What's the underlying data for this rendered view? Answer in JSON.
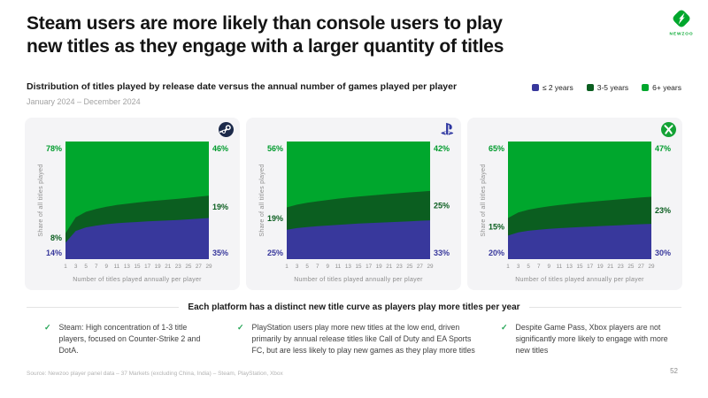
{
  "header": {
    "title_line1": "Steam users are more likely than console users to play",
    "title_line2": "new titles as they engage with a larger quantity of titles",
    "logo_text": "NEWZOO"
  },
  "subtitle": {
    "text": "Distribution of titles played by release date versus the annual number of games played per player",
    "date_range": "January 2024 – December 2024"
  },
  "legend": {
    "items": [
      {
        "label": "≤ 2 years",
        "color": "#38389c"
      },
      {
        "label": "3-5 years",
        "color": "#0b5e20"
      },
      {
        "label": "6+ years",
        "color": "#00a72d"
      }
    ]
  },
  "chart_data": {
    "type": "area",
    "stacked": true,
    "unit": "%",
    "ylim": [
      0,
      100
    ],
    "grid": false,
    "x_label": "Number of titles played annually per player",
    "y_label": "Share of all titles played",
    "x_ticks": [
      1,
      3,
      5,
      7,
      9,
      11,
      13,
      15,
      17,
      19,
      21,
      23,
      25,
      27,
      29
    ],
    "series_names": [
      "≤ 2 years",
      "3-5 years",
      "6+ years"
    ],
    "colors": {
      "years_le_2": "#38389c",
      "years_3_5": "#0b5e20",
      "years_6_plus": "#00a72d",
      "label_green": "#009b2d"
    },
    "charts": [
      {
        "platform": "Steam",
        "icon": "steam-icon",
        "left_labels": [
          "78%",
          "8%",
          "14%"
        ],
        "right_labels": [
          "46%",
          "19%",
          "35%"
        ],
        "series": {
          "years_le_2": [
            14,
            24,
            27,
            28.5,
            29.7,
            30.5,
            31.1,
            31.6,
            32.1,
            32.5,
            32.9,
            33.3,
            33.8,
            34.4,
            35
          ],
          "years_3_5": [
            8,
            11.5,
            13.2,
            14.2,
            14.9,
            15.5,
            16.0,
            16.5,
            16.9,
            17.3,
            17.7,
            18.0,
            18.4,
            18.7,
            19
          ],
          "years_6_plus": [
            78,
            64.5,
            59.8,
            57.3,
            55.4,
            54.0,
            52.9,
            51.9,
            51.0,
            50.2,
            49.4,
            48.7,
            47.8,
            46.9,
            46
          ]
        }
      },
      {
        "platform": "PlayStation",
        "icon": "playstation-icon",
        "left_labels": [
          "56%",
          "19%",
          "25%"
        ],
        "right_labels": [
          "42%",
          "25%",
          "33%"
        ],
        "series": {
          "years_le_2": [
            25,
            26.4,
            27.3,
            28.0,
            28.6,
            29.2,
            29.7,
            30.2,
            30.6,
            31.0,
            31.4,
            31.8,
            32.2,
            32.6,
            33
          ],
          "years_3_5": [
            19,
            19.9,
            20.6,
            21.2,
            21.7,
            22.2,
            22.6,
            23.0,
            23.4,
            23.7,
            24.0,
            24.3,
            24.6,
            24.8,
            25
          ],
          "years_6_plus": [
            56,
            53.7,
            52.1,
            50.8,
            49.7,
            48.6,
            47.7,
            46.8,
            46.0,
            45.3,
            44.6,
            43.9,
            43.2,
            42.6,
            42
          ]
        }
      },
      {
        "platform": "Xbox",
        "icon": "xbox-icon",
        "left_labels": [
          "65%",
          "15%",
          "20%"
        ],
        "right_labels": [
          "47%",
          "23%",
          "30%"
        ],
        "series": {
          "years_le_2": [
            20,
            22.8,
            24.1,
            25.0,
            25.7,
            26.3,
            26.8,
            27.3,
            27.7,
            28.1,
            28.5,
            28.9,
            29.3,
            29.7,
            30
          ],
          "years_3_5": [
            15,
            16.9,
            17.9,
            18.6,
            19.2,
            19.7,
            20.2,
            20.6,
            21.0,
            21.4,
            21.7,
            22.0,
            22.4,
            22.7,
            23
          ],
          "years_6_plus": [
            65,
            60.3,
            58.0,
            56.4,
            55.1,
            54.0,
            53.0,
            52.1,
            51.3,
            50.5,
            49.8,
            49.1,
            48.3,
            47.6,
            47
          ]
        }
      }
    ]
  },
  "insights": {
    "heading": "Each platform has a distinct new title curve as players play more titles per year",
    "check_glyph": "✓",
    "bullets": [
      "Steam: High concentration of 1-3 title players, focused on Counter-Strike 2 and DotA.",
      "PlayStation users play more new titles at the low end, driven primarily by annual release titles like Call of Duty and EA Sports FC, but are less likely to play new games as they play more titles",
      "Despite Game Pass, Xbox players are not significantly more likely to engage with more new titles"
    ]
  },
  "footer": {
    "source": "Source: Newzoo player panel data – 37 Markets (excluding China, India) – Steam, PlayStation, Xbox",
    "page": "52"
  }
}
